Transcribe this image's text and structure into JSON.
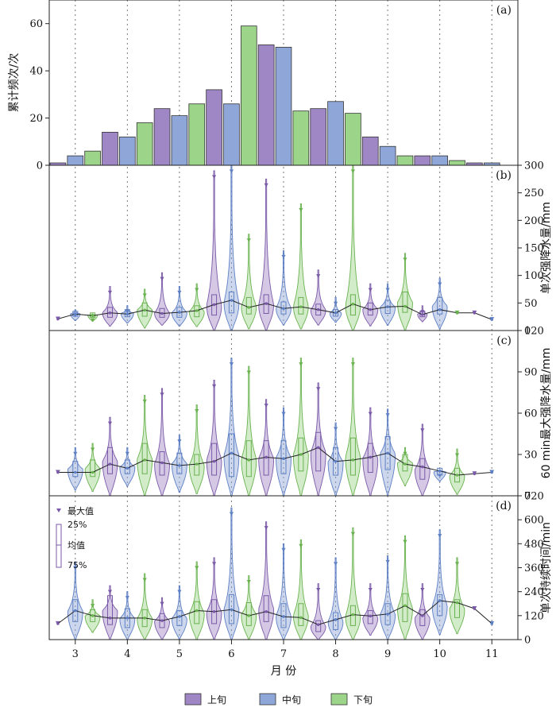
{
  "colors": {
    "上旬": "#9f86c5",
    "中旬": "#8ea6d8",
    "下旬": "#9cd48a",
    "上旬_dark": "#7a5aa8",
    "中旬_dark": "#5d7fc4",
    "下旬_dark": "#69b24f"
  },
  "legend": {
    "items": [
      "上旬",
      "中旬",
      "下旬"
    ]
  },
  "xaxis": {
    "title": "月    份",
    "ticks": [
      "3",
      "4",
      "5",
      "6",
      "7",
      "8",
      "9",
      "10",
      "11"
    ]
  },
  "key": {
    "max_label": "最大值",
    "p25_label": "25%",
    "mean_label": "均值",
    "p75_label": "75%"
  },
  "chart_data": [
    {
      "panel": "(a)",
      "type": "bar",
      "ylabel": "累计频次/次",
      "ylim": [
        0,
        70
      ],
      "yticks": [
        0,
        20,
        40,
        60
      ],
      "months": [
        "3",
        "4",
        "5",
        "6",
        "7",
        "8",
        "9",
        "10",
        "11"
      ],
      "series": [
        {
          "name": "上旬",
          "values": [
            1,
            14,
            24,
            32,
            51,
            24,
            12,
            4,
            1
          ]
        },
        {
          "name": "中旬",
          "values": [
            4,
            12,
            21,
            26,
            50,
            27,
            8,
            4,
            1
          ]
        },
        {
          "name": "下旬",
          "values": [
            6,
            18,
            26,
            59,
            23,
            22,
            4,
            2,
            null
          ]
        }
      ]
    },
    {
      "panel": "(b)",
      "type": "violin",
      "ylabel": "单次强降水量/mm",
      "ylim": [
        0,
        300
      ],
      "yticks": [
        0,
        50,
        100,
        150,
        200,
        250,
        300
      ],
      "periods": [
        "3上",
        "3中",
        "3下",
        "4上",
        "4中",
        "4下",
        "5上",
        "5中",
        "5下",
        "6上",
        "6中",
        "6下",
        "7上",
        "7中",
        "7下",
        "8上",
        "8中",
        "8下",
        "9上",
        "9中",
        "9下",
        "10上",
        "10中",
        "10下",
        "11上",
        "11中"
      ],
      "max": [
        21,
        38,
        30,
        80,
        45,
        75,
        105,
        80,
        85,
        290,
        300,
        175,
        275,
        145,
        230,
        110,
        60,
        300,
        85,
        85,
        140,
        45,
        95,
        35,
        32,
        20
      ],
      "q1": [
        null,
        26,
        24,
        24,
        25,
        26,
        24,
        24,
        25,
        28,
        32,
        30,
        31,
        30,
        30,
        28,
        26,
        28,
        28,
        31,
        33,
        25,
        30,
        null,
        null,
        null
      ],
      "q3": [
        null,
        35,
        32,
        42,
        38,
        50,
        40,
        42,
        45,
        65,
        70,
        60,
        65,
        52,
        60,
        48,
        38,
        65,
        50,
        55,
        70,
        35,
        60,
        null,
        null,
        null
      ],
      "mean": [
        21,
        30,
        27,
        32,
        30,
        37,
        31,
        33,
        36,
        47,
        55,
        42,
        49,
        40,
        43,
        38,
        32,
        48,
        38,
        43,
        44,
        29,
        38,
        32,
        32,
        20
      ]
    },
    {
      "panel": "(c)",
      "type": "violin",
      "ylabel": "60 min最大强降水量/mm",
      "ylim": [
        0,
        120
      ],
      "yticks": [
        0,
        30,
        60,
        90,
        120
      ],
      "periods": [
        "3上",
        "3中",
        "3下",
        "4上",
        "4中",
        "4下",
        "5上",
        "5中",
        "5下",
        "6上",
        "6中",
        "6下",
        "7上",
        "7中",
        "7下",
        "8上",
        "8中",
        "8下",
        "9上",
        "9中",
        "9下",
        "10上",
        "10中",
        "10下",
        "11上",
        "11中"
      ],
      "max": [
        17,
        35,
        38,
        57,
        35,
        73,
        78,
        44,
        66,
        84,
        100,
        94,
        70,
        64,
        100,
        82,
        53,
        100,
        64,
        63,
        35,
        52,
        19,
        34,
        16,
        17
      ],
      "q1": [
        null,
        14,
        14,
        16,
        16,
        16,
        15,
        16,
        15,
        15,
        14,
        14,
        15,
        16,
        18,
        18,
        15,
        15,
        17,
        19,
        18,
        12,
        15,
        10,
        null,
        null
      ],
      "q3": [
        null,
        25,
        26,
        35,
        26,
        38,
        32,
        31,
        30,
        38,
        45,
        40,
        40,
        40,
        42,
        46,
        35,
        42,
        38,
        43,
        30,
        27,
        20,
        20,
        null,
        null
      ],
      "mean": [
        17,
        17,
        17,
        23,
        20,
        26,
        24,
        22,
        23,
        25,
        31,
        26,
        28,
        27,
        30,
        35,
        25,
        26,
        28,
        31,
        23,
        21,
        18,
        15,
        16,
        17
      ]
    },
    {
      "panel": "(d)",
      "type": "violin",
      "ylabel": "单次持续时间/min",
      "ylim": [
        0,
        720
      ],
      "yticks": [
        0,
        120,
        240,
        360,
        480,
        600,
        720
      ],
      "periods": [
        "3上",
        "3中",
        "3下",
        "4上",
        "4中",
        "4下",
        "5上",
        "5中",
        "5下",
        "6上",
        "6中",
        "6下",
        "7上",
        "7中",
        "7下",
        "8上",
        "8中",
        "8下",
        "9上",
        "9中",
        "9下",
        "10上",
        "10中",
        "10下",
        "11上",
        "11中"
      ],
      "max": [
        80,
        390,
        200,
        270,
        240,
        330,
        210,
        270,
        390,
        410,
        660,
        320,
        590,
        480,
        500,
        280,
        410,
        560,
        280,
        420,
        520,
        280,
        550,
        410,
        160,
        80
      ],
      "q1": [
        null,
        90,
        90,
        75,
        60,
        65,
        60,
        70,
        80,
        80,
        80,
        70,
        90,
        60,
        70,
        40,
        50,
        70,
        80,
        75,
        90,
        70,
        120,
        110,
        null,
        null
      ],
      "q3": [
        null,
        200,
        150,
        220,
        155,
        150,
        130,
        145,
        190,
        200,
        225,
        185,
        220,
        180,
        180,
        95,
        135,
        170,
        145,
        180,
        230,
        150,
        225,
        200,
        null,
        null
      ],
      "mean": [
        80,
        145,
        120,
        108,
        108,
        108,
        95,
        115,
        145,
        140,
        150,
        120,
        140,
        115,
        110,
        75,
        100,
        125,
        118,
        128,
        170,
        120,
        195,
        185,
        155,
        80
      ]
    }
  ]
}
